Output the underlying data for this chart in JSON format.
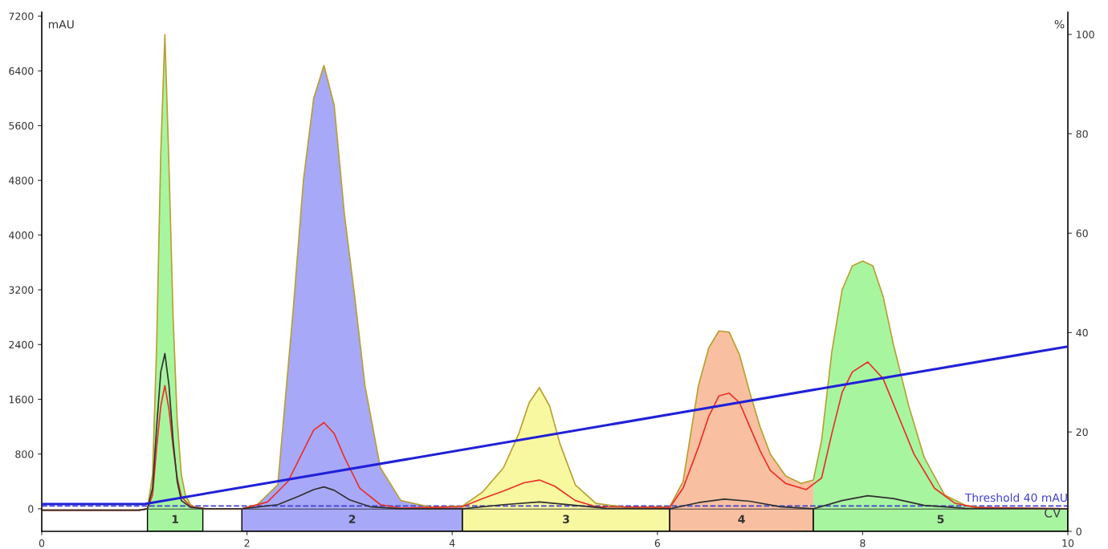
{
  "chart_data": {
    "type": "line",
    "xlabel": "CV",
    "ylabel": "mAU",
    "y2label": "%",
    "xlim": [
      0,
      10
    ],
    "xticks": [
      0,
      2,
      4,
      6,
      8,
      10
    ],
    "ylim": [
      -330,
      7260
    ],
    "yticks": [
      0,
      800,
      1600,
      2400,
      3200,
      4000,
      4800,
      5600,
      6400,
      7200
    ],
    "y2lim": [
      0,
      104.5
    ],
    "y2ticks": [
      0,
      20,
      40,
      60,
      80,
      100
    ],
    "series": [
      {
        "type": "area",
        "color": "#a8f5a0",
        "x": [
          1.03,
          1.08,
          1.12,
          1.16,
          1.2,
          1.24,
          1.28,
          1.32,
          1.36,
          1.4,
          1.45,
          1.5,
          1.57
        ],
        "values": [
          0,
          500,
          2400,
          5200,
          6930,
          5000,
          2800,
          1300,
          500,
          200,
          60,
          20,
          0
        ]
      },
      {
        "type": "area",
        "color": "#a8a8f8",
        "x": [
          1.95,
          2.1,
          2.3,
          2.45,
          2.55,
          2.65,
          2.75,
          2.85,
          2.95,
          3.05,
          3.15,
          3.3,
          3.5,
          3.8,
          4.1
        ],
        "values": [
          0,
          60,
          350,
          2900,
          4800,
          6000,
          6480,
          5900,
          4300,
          3100,
          1800,
          600,
          120,
          20,
          40
        ]
      },
      {
        "type": "area",
        "color": "#f8f8a0",
        "x": [
          4.1,
          4.3,
          4.5,
          4.65,
          4.75,
          4.85,
          4.95,
          5.05,
          5.2,
          5.4,
          5.7,
          6.12
        ],
        "values": [
          40,
          250,
          600,
          1100,
          1550,
          1770,
          1500,
          950,
          350,
          80,
          20,
          30
        ]
      },
      {
        "type": "area",
        "color": "#f8c0a0",
        "x": [
          6.12,
          6.25,
          6.4,
          6.5,
          6.6,
          6.7,
          6.8,
          6.9,
          7.0,
          7.1,
          7.25,
          7.4,
          7.52
        ],
        "values": [
          30,
          400,
          1800,
          2350,
          2600,
          2580,
          2250,
          1700,
          1200,
          800,
          480,
          370,
          420
        ]
      },
      {
        "type": "area",
        "color": "#a8f5a0",
        "x": [
          7.52,
          7.6,
          7.7,
          7.8,
          7.9,
          8.0,
          8.1,
          8.2,
          8.3,
          8.45,
          8.6,
          8.8,
          9.0,
          9.2,
          10
        ],
        "values": [
          420,
          1000,
          2300,
          3200,
          3550,
          3620,
          3550,
          3100,
          2400,
          1500,
          750,
          200,
          50,
          10,
          0
        ]
      },
      {
        "color": "#b8a030",
        "x": [
          0,
          0.95,
          1.03,
          1.08,
          1.12,
          1.16,
          1.2,
          1.24,
          1.28,
          1.32,
          1.36,
          1.4,
          1.45,
          1.5,
          1.6,
          1.95,
          2.1,
          2.3,
          2.45,
          2.55,
          2.65,
          2.75,
          2.85,
          2.95,
          3.05,
          3.15,
          3.3,
          3.5,
          3.8,
          4.1,
          4.3,
          4.5,
          4.65,
          4.75,
          4.85,
          4.95,
          5.05,
          5.2,
          5.4,
          5.7,
          6.12,
          6.25,
          6.4,
          6.5,
          6.6,
          6.7,
          6.8,
          6.9,
          7.0,
          7.1,
          7.25,
          7.4,
          7.52,
          7.6,
          7.7,
          7.8,
          7.9,
          8.0,
          8.1,
          8.2,
          8.3,
          8.45,
          8.6,
          8.8,
          9.0,
          9.2,
          10
        ],
        "values": [
          -20,
          -20,
          0,
          500,
          2400,
          5200,
          6930,
          5000,
          2800,
          1300,
          500,
          200,
          60,
          20,
          0,
          0,
          60,
          350,
          2900,
          4800,
          6000,
          6480,
          5900,
          4300,
          3100,
          1800,
          600,
          120,
          20,
          40,
          250,
          600,
          1100,
          1550,
          1770,
          1500,
          950,
          350,
          80,
          20,
          30,
          400,
          1800,
          2350,
          2600,
          2580,
          2250,
          1700,
          1200,
          800,
          480,
          370,
          420,
          1000,
          2300,
          3200,
          3550,
          3620,
          3550,
          3100,
          2400,
          1500,
          750,
          200,
          50,
          10,
          0
        ]
      },
      {
        "color": "#e83028",
        "x": [
          0,
          0.95,
          1.03,
          1.08,
          1.12,
          1.16,
          1.2,
          1.24,
          1.28,
          1.32,
          1.36,
          1.45,
          1.6,
          1.95,
          2.2,
          2.4,
          2.55,
          2.65,
          2.75,
          2.85,
          2.95,
          3.1,
          3.3,
          3.5,
          4.1,
          4.3,
          4.5,
          4.7,
          4.85,
          5.0,
          5.2,
          5.4,
          6.12,
          6.25,
          6.4,
          6.5,
          6.6,
          6.7,
          6.8,
          6.9,
          7.0,
          7.1,
          7.25,
          7.45,
          7.6,
          7.7,
          7.8,
          7.9,
          8.05,
          8.2,
          8.35,
          8.5,
          8.7,
          8.9,
          9.1,
          10
        ],
        "values": [
          -20,
          -20,
          0,
          200,
          900,
          1500,
          1800,
          1450,
          900,
          450,
          180,
          30,
          0,
          0,
          100,
          400,
          850,
          1150,
          1260,
          1100,
          750,
          300,
          60,
          10,
          30,
          150,
          260,
          380,
          420,
          330,
          120,
          30,
          20,
          300,
          900,
          1350,
          1650,
          1690,
          1550,
          1200,
          850,
          560,
          370,
          280,
          450,
          1100,
          1700,
          2000,
          2145,
          1900,
          1350,
          800,
          300,
          80,
          20,
          0
        ]
      },
      {
        "color": "#303030",
        "x": [
          0,
          0.95,
          1.03,
          1.08,
          1.12,
          1.16,
          1.2,
          1.24,
          1.28,
          1.32,
          1.36,
          1.45,
          1.6,
          1.95,
          2.3,
          2.5,
          2.65,
          2.75,
          2.85,
          3.0,
          3.2,
          3.5,
          4.1,
          4.5,
          4.85,
          5.2,
          5.5,
          6.12,
          6.4,
          6.65,
          6.9,
          7.2,
          7.52,
          7.8,
          8.05,
          8.3,
          8.6,
          9.0,
          10
        ],
        "values": [
          -20,
          -20,
          0,
          300,
          1200,
          2000,
          2270,
          1800,
          1000,
          400,
          120,
          20,
          0,
          0,
          60,
          180,
          280,
          320,
          270,
          130,
          30,
          0,
          0,
          60,
          100,
          50,
          5,
          0,
          90,
          140,
          110,
          30,
          0,
          120,
          190,
          150,
          50,
          5,
          0
        ]
      },
      {
        "axis": "y2",
        "color": "#2020d8",
        "x": [
          0,
          1.0,
          10
        ],
        "values": [
          5.5,
          5.5,
          37.2
        ]
      }
    ],
    "ref_lines": [
      {
        "axis": "y",
        "value": 40,
        "label": "Threshold 40 mAU",
        "color": "#4040d0",
        "line_style": "dashed"
      }
    ],
    "bands": [
      {
        "axis": "x",
        "from": 1.03,
        "to": 1.57,
        "label": "1",
        "color": "#a8f5a0"
      },
      {
        "axis": "x",
        "from": 1.95,
        "to": 4.1,
        "label": "2",
        "color": "#a8a8f8"
      },
      {
        "axis": "x",
        "from": 4.1,
        "to": 6.12,
        "label": "3",
        "color": "#f8f8a0"
      },
      {
        "axis": "x",
        "from": 6.12,
        "to": 7.52,
        "label": "4",
        "color": "#f8c0a0"
      },
      {
        "axis": "x",
        "from": 7.52,
        "to": 10,
        "label": "5",
        "color": "#a8f5a0"
      }
    ]
  }
}
